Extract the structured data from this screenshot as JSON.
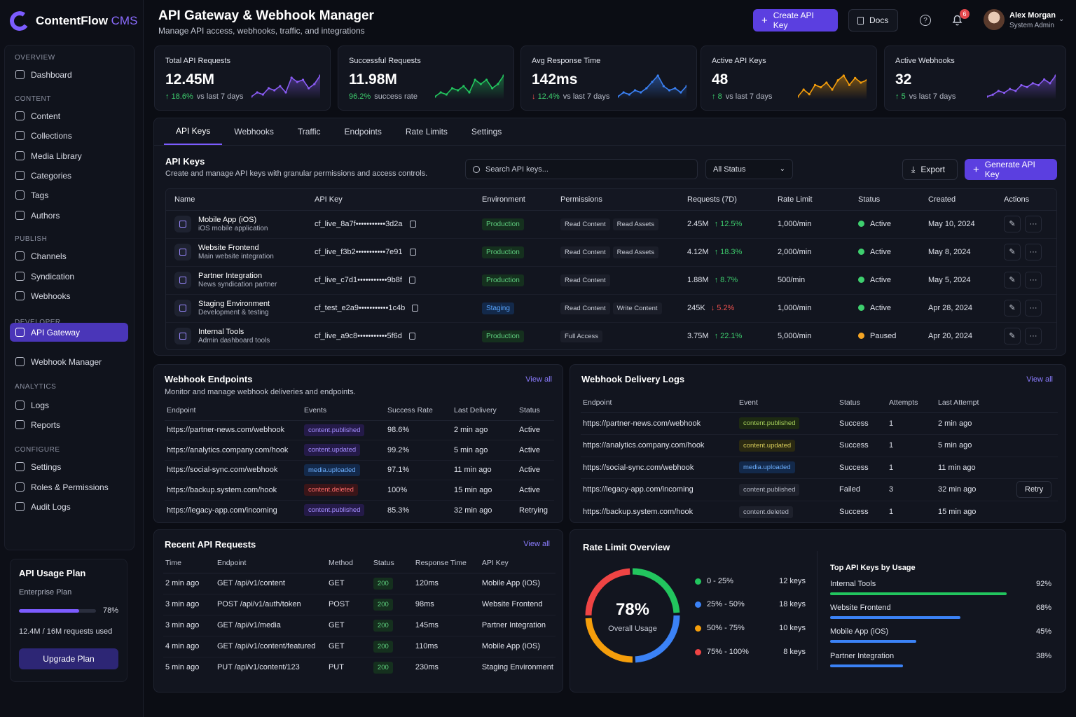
{
  "app": {
    "name": "ContentFlow",
    "name_suffix": "CMS"
  },
  "colors": {
    "accent": "#7c5cff",
    "success": "#3ecf6e",
    "danger": "#f0524f",
    "warning": "#f5a524",
    "info": "#4a8cff"
  },
  "sidebar": {
    "sections": [
      {
        "label": "OVERVIEW",
        "items": [
          {
            "label": "Dashboard",
            "icon": "home-icon"
          }
        ]
      },
      {
        "label": "CONTENT",
        "items": [
          {
            "label": "Content",
            "icon": "file-icon"
          },
          {
            "label": "Collections",
            "icon": "stack-icon"
          },
          {
            "label": "Media Library",
            "icon": "image-icon"
          },
          {
            "label": "Categories",
            "icon": "folder-icon"
          },
          {
            "label": "Tags",
            "icon": "tag-icon"
          },
          {
            "label": "Authors",
            "icon": "users-icon"
          }
        ]
      },
      {
        "label": "PUBLISH",
        "items": [
          {
            "label": "Channels",
            "icon": "channels-icon"
          },
          {
            "label": "Syndication",
            "icon": "syndication-icon"
          },
          {
            "label": "Webhooks",
            "icon": "webhook-icon"
          }
        ]
      },
      {
        "label": "DEVELOPER",
        "items": [
          {
            "label": "API Gateway",
            "icon": "api-icon"
          },
          {
            "label": "Webhook Manager",
            "icon": "webhook-manager-icon"
          }
        ]
      },
      {
        "label": "ANALYTICS",
        "items": [
          {
            "label": "Logs",
            "icon": "logs-icon"
          },
          {
            "label": "Reports",
            "icon": "reports-icon"
          }
        ]
      },
      {
        "label": "CONFIGURE",
        "items": [
          {
            "label": "Settings",
            "icon": "gear-icon"
          },
          {
            "label": "Roles & Permissions",
            "icon": "roles-icon"
          },
          {
            "label": "Audit Logs",
            "icon": "audit-icon"
          }
        ]
      }
    ],
    "active_item": "API Gateway"
  },
  "plan": {
    "title": "API Usage Plan",
    "tier": "Enterprise Plan",
    "percent_label": "78%",
    "usage_fraction": 0.78,
    "used_text": "12.4M / 16M requests used",
    "button": "Upgrade Plan"
  },
  "header": {
    "title": "API Gateway & Webhook Manager",
    "subtitle": "Manage API access, webhooks, traffic, and integrations",
    "create_btn": "Create API Key",
    "docs_btn": "Docs",
    "notification_count": "6",
    "user_name": "Alex Morgan",
    "user_role": "System Admin"
  },
  "stats": [
    {
      "label": "Total API Requests",
      "value": "12.45M",
      "delta": "18.6%",
      "delta_dir": "up",
      "foot": "vs last 7 days",
      "color": "#8b5cf6",
      "spark": [
        5,
        7,
        6,
        9,
        8,
        10,
        7,
        14,
        12,
        13,
        9,
        11,
        15
      ]
    },
    {
      "label": "Successful Requests",
      "value": "11.98M",
      "delta": "96.2%",
      "delta_dir": "none",
      "foot": "success rate",
      "color": "#22c55e",
      "spark": [
        4,
        6,
        5,
        8,
        7,
        9,
        6,
        12,
        10,
        12,
        8,
        10,
        14
      ]
    },
    {
      "label": "Avg Response Time",
      "value": "142ms",
      "delta": "12.4%",
      "delta_dir": "down",
      "foot": "vs last 7 days",
      "color": "#3b82f6",
      "spark": [
        5,
        7,
        6,
        8,
        7,
        9,
        12,
        15,
        10,
        8,
        9,
        7,
        10
      ]
    },
    {
      "label": "Active API Keys",
      "value": "48",
      "delta": "8",
      "delta_dir": "up",
      "foot": "vs last 7 days",
      "color": "#f59e0b",
      "spark": [
        4,
        7,
        5,
        9,
        8,
        10,
        7,
        11,
        13,
        9,
        12,
        10,
        11
      ]
    },
    {
      "label": "Active Webhooks",
      "value": "32",
      "delta": "5",
      "delta_dir": "up",
      "foot": "vs last 7 days",
      "color": "#8b5cf6",
      "spark": [
        3,
        4,
        6,
        5,
        7,
        6,
        9,
        8,
        10,
        9,
        12,
        10,
        14
      ]
    }
  ],
  "tabs": [
    "API Keys",
    "Webhooks",
    "Traffic",
    "Endpoints",
    "Rate Limits",
    "Settings"
  ],
  "api_keys": {
    "title": "API Keys",
    "subtitle": "Create and manage API keys with granular permissions and access controls.",
    "search_placeholder": "Search API keys...",
    "status_filter": "All Status",
    "export_btn": "Export",
    "generate_btn": "Generate API Key",
    "columns": [
      "Name",
      "API Key",
      "Environment",
      "Permissions",
      "Requests (7D)",
      "Rate Limit",
      "Status",
      "Created",
      "Actions"
    ],
    "rows": [
      {
        "name": "Mobile App (iOS)",
        "desc": "iOS mobile application",
        "key": "cf_live_8a7f•••••••••••3d2a",
        "env": "Production",
        "perms": [
          "Read Content",
          "Read Assets"
        ],
        "requests": "2.45M",
        "change": "12.5%",
        "change_dir": "up",
        "rate": "1,000/min",
        "status": "Active",
        "created": "May 10, 2024"
      },
      {
        "name": "Website Frontend",
        "desc": "Main website integration",
        "key": "cf_live_f3b2•••••••••••7e91",
        "env": "Production",
        "perms": [
          "Read Content",
          "Read Assets"
        ],
        "requests": "4.12M",
        "change": "18.3%",
        "change_dir": "up",
        "rate": "2,000/min",
        "status": "Active",
        "created": "May 8, 2024"
      },
      {
        "name": "Partner Integration",
        "desc": "News syndication partner",
        "key": "cf_live_c7d1•••••••••••9b8f",
        "env": "Production",
        "perms": [
          "Read Content"
        ],
        "requests": "1.88M",
        "change": "8.7%",
        "change_dir": "up",
        "rate": "500/min",
        "status": "Active",
        "created": "May 5, 2024"
      },
      {
        "name": "Staging Environment",
        "desc": "Development & testing",
        "key": "cf_test_e2a9•••••••••••1c4b",
        "env": "Staging",
        "perms": [
          "Read Content",
          "Write Content"
        ],
        "requests": "245K",
        "change": "5.2%",
        "change_dir": "down",
        "rate": "1,000/min",
        "status": "Active",
        "created": "Apr 28, 2024"
      },
      {
        "name": "Internal Tools",
        "desc": "Admin dashboard tools",
        "key": "cf_live_a9c8•••••••••••5f6d",
        "env": "Production",
        "perms": [
          "Full Access"
        ],
        "requests": "3.75M",
        "change": "22.1%",
        "change_dir": "up",
        "rate": "5,000/min",
        "status": "Paused",
        "created": "Apr 20, 2024"
      }
    ]
  },
  "webhook_endpoints": {
    "title": "Webhook Endpoints",
    "subtitle": "Monitor and manage webhook deliveries and endpoints.",
    "view_all": "View all",
    "columns": [
      "Endpoint",
      "Events",
      "Success Rate",
      "Last Delivery",
      "Status"
    ],
    "rows": [
      {
        "endpoint": "https://partner-news.com/webhook",
        "event": "content.published",
        "event_kind": "pub",
        "rate": "98.6%",
        "last": "2 min ago",
        "status": "Active",
        "status_kind": "ok"
      },
      {
        "endpoint": "https://analytics.company.com/hook",
        "event": "content.updated",
        "event_kind": "upd",
        "rate": "99.2%",
        "last": "5 min ago",
        "status": "Active",
        "status_kind": "ok"
      },
      {
        "endpoint": "https://social-sync.com/webhook",
        "event": "media.uploaded",
        "event_kind": "med",
        "rate": "97.1%",
        "last": "11 min ago",
        "status": "Active",
        "status_kind": "ok"
      },
      {
        "endpoint": "https://backup.system.com/hook",
        "event": "content.deleted",
        "event_kind": "del",
        "rate": "100%",
        "last": "15 min ago",
        "status": "Active",
        "status_kind": "ok"
      },
      {
        "endpoint": "https://legacy-app.com/incoming",
        "event": "content.published",
        "event_kind": "pub",
        "rate": "85.3%",
        "last": "32 min ago",
        "status": "Retrying",
        "status_kind": "warn"
      }
    ]
  },
  "delivery_logs": {
    "title": "Webhook Delivery Logs",
    "view_all": "View all",
    "columns": [
      "Endpoint",
      "Event",
      "Status",
      "Attempts",
      "Last Attempt"
    ],
    "retry_label": "Retry",
    "rows": [
      {
        "endpoint": "https://partner-news.com/webhook",
        "event": "content.published",
        "event_kind": "pubg",
        "status": "Success",
        "status_kind": "ok",
        "attempts": "1",
        "last": "2 min ago",
        "retry": false
      },
      {
        "endpoint": "https://analytics.company.com/hook",
        "event": "content.updated",
        "event_kind": "updg",
        "status": "Success",
        "status_kind": "ok",
        "attempts": "1",
        "last": "5 min ago",
        "retry": false
      },
      {
        "endpoint": "https://social-sync.com/webhook",
        "event": "media.uploaded",
        "event_kind": "medb",
        "status": "Success",
        "status_kind": "ok",
        "attempts": "1",
        "last": "11 min ago",
        "retry": false
      },
      {
        "endpoint": "https://legacy-app.com/incoming",
        "event": "content.published",
        "event_kind": "grey",
        "status": "Failed",
        "status_kind": "fail",
        "attempts": "3",
        "last": "32 min ago",
        "retry": true
      },
      {
        "endpoint": "https://backup.system.com/hook",
        "event": "content.deleted",
        "event_kind": "grey",
        "status": "Success",
        "status_kind": "ok",
        "attempts": "1",
        "last": "15 min ago",
        "retry": false
      }
    ]
  },
  "recent_requests": {
    "title": "Recent API Requests",
    "view_all": "View all",
    "columns": [
      "Time",
      "Endpoint",
      "Method",
      "Status",
      "Response Time",
      "API Key"
    ],
    "rows": [
      {
        "time": "2 min ago",
        "endpoint": "GET  /api/v1/content",
        "method": "GET",
        "status": "200",
        "resp": "120ms",
        "key": "Mobile App (iOS)"
      },
      {
        "time": "3 min ago",
        "endpoint": "POST  /api/v1/auth/token",
        "method": "POST",
        "status": "200",
        "resp": "98ms",
        "key": "Website Frontend"
      },
      {
        "time": "3 min ago",
        "endpoint": "GET  /api/v1/media",
        "method": "GET",
        "status": "200",
        "resp": "145ms",
        "key": "Partner Integration"
      },
      {
        "time": "4 min ago",
        "endpoint": "GET  /api/v1/content/featured",
        "method": "GET",
        "status": "200",
        "resp": "110ms",
        "key": "Mobile App (iOS)"
      },
      {
        "time": "5 min ago",
        "endpoint": "PUT  /api/v1/content/123",
        "method": "PUT",
        "status": "200",
        "resp": "230ms",
        "key": "Staging Environment"
      }
    ]
  },
  "rate_limit": {
    "title": "Rate Limit Overview",
    "gauge_value": "78%",
    "gauge_label": "Overall Usage",
    "gauge_segments": [
      {
        "color": "#22c55e",
        "fraction": 0.25
      },
      {
        "color": "#3b82f6",
        "fraction": 0.25
      },
      {
        "color": "#f59e0b",
        "fraction": 0.25
      },
      {
        "color": "#ef4444",
        "fraction": 0.25
      }
    ],
    "buckets": [
      {
        "label": "0 - 25%",
        "count": "12 keys",
        "color": "#22c55e"
      },
      {
        "label": "25% - 50%",
        "count": "18 keys",
        "color": "#3b82f6"
      },
      {
        "label": "50% - 75%",
        "count": "10 keys",
        "color": "#f59e0b"
      },
      {
        "label": "75% - 100%",
        "count": "8 keys",
        "color": "#ef4444"
      }
    ],
    "top_title": "Top API Keys by Usage",
    "top_keys": [
      {
        "name": "Internal Tools",
        "pct": "92%",
        "fraction": 0.92,
        "color": "#22c55e"
      },
      {
        "name": "Website Frontend",
        "pct": "68%",
        "fraction": 0.68,
        "color": "#3b82f6"
      },
      {
        "name": "Mobile App (iOS)",
        "pct": "45%",
        "fraction": 0.45,
        "color": "#3b82f6"
      },
      {
        "name": "Partner Integration",
        "pct": "38%",
        "fraction": 0.38,
        "color": "#3b82f6"
      }
    ]
  }
}
